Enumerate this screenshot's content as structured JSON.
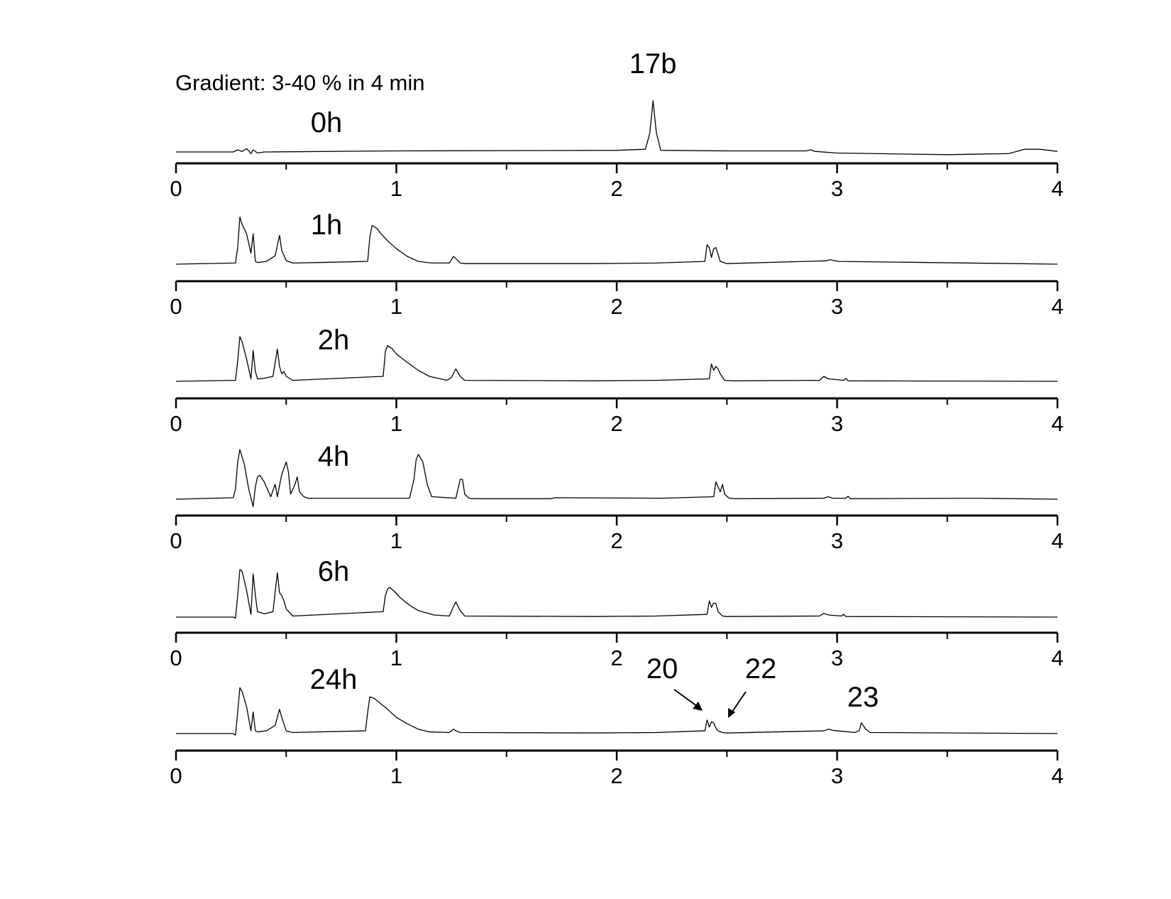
{
  "note": "Gradient: 3-40 % in 4 min",
  "chart_data": {
    "type": "line",
    "xlim": [
      0,
      4
    ],
    "tick_labels": [
      "0",
      "1",
      "2",
      "3",
      "4"
    ],
    "grid": false,
    "panels": [
      {
        "name": "0h",
        "x": [
          0.0,
          0.26,
          0.28,
          0.3,
          0.32,
          0.33,
          0.34,
          0.35,
          0.37,
          0.4,
          1.0,
          2.0,
          2.13,
          2.15,
          2.165,
          2.18,
          2.2,
          2.5,
          2.8,
          2.86,
          2.88,
          2.9,
          3.0,
          3.5,
          3.78,
          3.85,
          3.92,
          4.0
        ],
        "y": [
          0.0,
          0.0,
          0.04,
          0.01,
          0.06,
          0.02,
          -0.03,
          0.04,
          -0.02,
          0.0,
          0.02,
          0.03,
          0.05,
          0.35,
          0.95,
          0.35,
          0.03,
          0.02,
          0.02,
          0.02,
          0.04,
          0.01,
          -0.02,
          -0.05,
          -0.03,
          0.05,
          0.05,
          0.01
        ]
      },
      {
        "name": "1h",
        "x": [
          0.0,
          0.27,
          0.28,
          0.29,
          0.3,
          0.32,
          0.34,
          0.35,
          0.36,
          0.37,
          0.41,
          0.45,
          0.47,
          0.48,
          0.5,
          0.53,
          0.65,
          0.87,
          0.88,
          0.89,
          0.91,
          0.93,
          0.96,
          1.0,
          1.05,
          1.1,
          1.16,
          1.24,
          1.26,
          1.27,
          1.29,
          1.31,
          1.9,
          2.18,
          2.4,
          2.41,
          2.42,
          2.43,
          2.44,
          2.45,
          2.47,
          2.5,
          2.95,
          2.97,
          2.99,
          3.01,
          4.0
        ],
        "y": [
          0.0,
          0.02,
          0.3,
          0.85,
          0.72,
          0.55,
          0.2,
          0.55,
          0.05,
          0.03,
          0.05,
          0.15,
          0.52,
          0.25,
          0.06,
          0.02,
          0.03,
          0.05,
          0.5,
          0.7,
          0.65,
          0.55,
          0.42,
          0.28,
          0.14,
          0.05,
          0.02,
          0.02,
          0.14,
          0.1,
          0.02,
          0.01,
          0.01,
          0.02,
          0.05,
          0.35,
          0.3,
          0.12,
          0.28,
          0.3,
          0.05,
          0.01,
          0.06,
          0.08,
          0.06,
          0.05,
          0.0
        ]
      },
      {
        "name": "2h",
        "x": [
          0.0,
          0.27,
          0.28,
          0.29,
          0.3,
          0.32,
          0.34,
          0.35,
          0.36,
          0.37,
          0.4,
          0.44,
          0.46,
          0.47,
          0.48,
          0.49,
          0.5,
          0.53,
          0.94,
          0.95,
          0.96,
          0.98,
          1.0,
          1.05,
          1.1,
          1.15,
          1.23,
          1.25,
          1.27,
          1.29,
          1.31,
          1.9,
          2.18,
          2.42,
          2.43,
          2.44,
          2.45,
          2.46,
          2.47,
          2.49,
          2.52,
          2.92,
          2.94,
          2.96,
          3.03,
          3.04,
          3.05,
          4.0
        ],
        "y": [
          0.0,
          0.02,
          0.4,
          0.9,
          0.8,
          0.45,
          0.05,
          0.62,
          0.2,
          0.05,
          0.06,
          0.1,
          0.65,
          0.3,
          0.15,
          0.2,
          0.1,
          0.02,
          0.1,
          0.6,
          0.72,
          0.66,
          0.55,
          0.38,
          0.22,
          0.1,
          0.02,
          0.08,
          0.25,
          0.1,
          0.02,
          0.01,
          0.02,
          0.05,
          0.35,
          0.22,
          0.3,
          0.25,
          0.15,
          0.02,
          0.01,
          0.02,
          0.1,
          0.05,
          0.02,
          0.06,
          0.01,
          0.0
        ]
      },
      {
        "name": "4h",
        "x": [
          0.0,
          0.26,
          0.27,
          0.28,
          0.29,
          0.31,
          0.33,
          0.35,
          0.36,
          0.37,
          0.38,
          0.4,
          0.43,
          0.45,
          0.46,
          0.48,
          0.5,
          0.51,
          0.52,
          0.54,
          0.55,
          0.56,
          0.58,
          0.6,
          1.06,
          1.08,
          1.09,
          1.1,
          1.12,
          1.14,
          1.16,
          1.27,
          1.29,
          1.3,
          1.31,
          1.33,
          1.35,
          1.7,
          1.72,
          2.2,
          2.44,
          2.45,
          2.46,
          2.47,
          2.48,
          2.49,
          2.51,
          2.54,
          2.94,
          2.96,
          2.98,
          3.04,
          3.05,
          3.06,
          3.64,
          4.0
        ],
        "y": [
          0.0,
          0.03,
          0.2,
          0.75,
          1.0,
          0.7,
          0.2,
          -0.15,
          0.25,
          0.45,
          0.48,
          0.35,
          0.05,
          0.3,
          0.05,
          0.5,
          0.75,
          0.55,
          0.1,
          0.3,
          0.45,
          0.15,
          0.05,
          0.02,
          0.02,
          0.4,
          0.8,
          0.9,
          0.75,
          0.3,
          0.05,
          0.02,
          0.4,
          0.4,
          0.1,
          0.02,
          0.01,
          0.01,
          0.03,
          0.02,
          0.05,
          0.35,
          0.25,
          0.15,
          0.3,
          0.1,
          0.02,
          0.01,
          0.02,
          0.05,
          0.02,
          0.02,
          0.06,
          0.01,
          0.02,
          0.0
        ]
      },
      {
        "name": "6h",
        "x": [
          0.0,
          0.26,
          0.27,
          0.28,
          0.29,
          0.3,
          0.32,
          0.34,
          0.35,
          0.36,
          0.37,
          0.4,
          0.44,
          0.46,
          0.47,
          0.48,
          0.49,
          0.5,
          0.53,
          0.94,
          0.95,
          0.96,
          0.97,
          0.99,
          1.02,
          1.06,
          1.1,
          1.17,
          1.24,
          1.26,
          1.27,
          1.29,
          1.31,
          1.9,
          2.18,
          2.41,
          2.42,
          2.43,
          2.44,
          2.45,
          2.46,
          2.48,
          2.5,
          2.92,
          2.94,
          2.96,
          3.02,
          3.03,
          3.04,
          4.0
        ],
        "y": [
          0.0,
          0.0,
          -0.02,
          0.4,
          0.88,
          0.85,
          0.5,
          0.05,
          0.8,
          0.4,
          0.1,
          0.06,
          0.1,
          0.82,
          0.45,
          0.4,
          0.3,
          0.15,
          0.02,
          0.1,
          0.4,
          0.52,
          0.55,
          0.48,
          0.35,
          0.22,
          0.12,
          0.04,
          0.02,
          0.2,
          0.28,
          0.12,
          0.02,
          0.01,
          0.02,
          0.05,
          0.3,
          0.18,
          0.26,
          0.25,
          0.1,
          0.02,
          0.01,
          0.02,
          0.07,
          0.04,
          0.02,
          0.05,
          0.01,
          0.0
        ]
      },
      {
        "name": "24h",
        "x": [
          0.0,
          0.26,
          0.27,
          0.28,
          0.29,
          0.3,
          0.32,
          0.34,
          0.35,
          0.36,
          0.37,
          0.41,
          0.45,
          0.47,
          0.48,
          0.5,
          0.53,
          0.86,
          0.87,
          0.88,
          0.9,
          0.93,
          0.96,
          1.0,
          1.05,
          1.1,
          1.15,
          1.24,
          1.26,
          1.27,
          1.29,
          1.9,
          2.18,
          2.4,
          2.41,
          2.42,
          2.43,
          2.44,
          2.45,
          2.46,
          2.48,
          2.5,
          2.94,
          2.96,
          2.98,
          3.0,
          3.08,
          3.1,
          3.11,
          3.13,
          3.15,
          4.0
        ],
        "y": [
          0.0,
          0.0,
          -0.03,
          0.4,
          0.85,
          0.78,
          0.5,
          0.05,
          0.4,
          0.05,
          0.03,
          0.05,
          0.15,
          0.45,
          0.3,
          0.05,
          0.02,
          0.05,
          0.4,
          0.68,
          0.65,
          0.55,
          0.45,
          0.3,
          0.18,
          0.08,
          0.03,
          0.02,
          0.08,
          0.05,
          0.02,
          0.01,
          0.02,
          0.05,
          0.25,
          0.12,
          0.22,
          0.2,
          0.1,
          0.05,
          0.02,
          0.01,
          0.05,
          0.08,
          0.06,
          0.05,
          0.02,
          0.05,
          0.2,
          0.08,
          0.02,
          0.0
        ]
      }
    ],
    "annotations": [
      {
        "text": "17b",
        "panel": "0h",
        "x": 2.16
      },
      {
        "text": "20",
        "panel": "24h",
        "x": 2.41
      },
      {
        "text": "22",
        "panel": "24h",
        "x": 2.45
      },
      {
        "text": "23",
        "panel": "24h",
        "x": 3.11
      }
    ]
  }
}
